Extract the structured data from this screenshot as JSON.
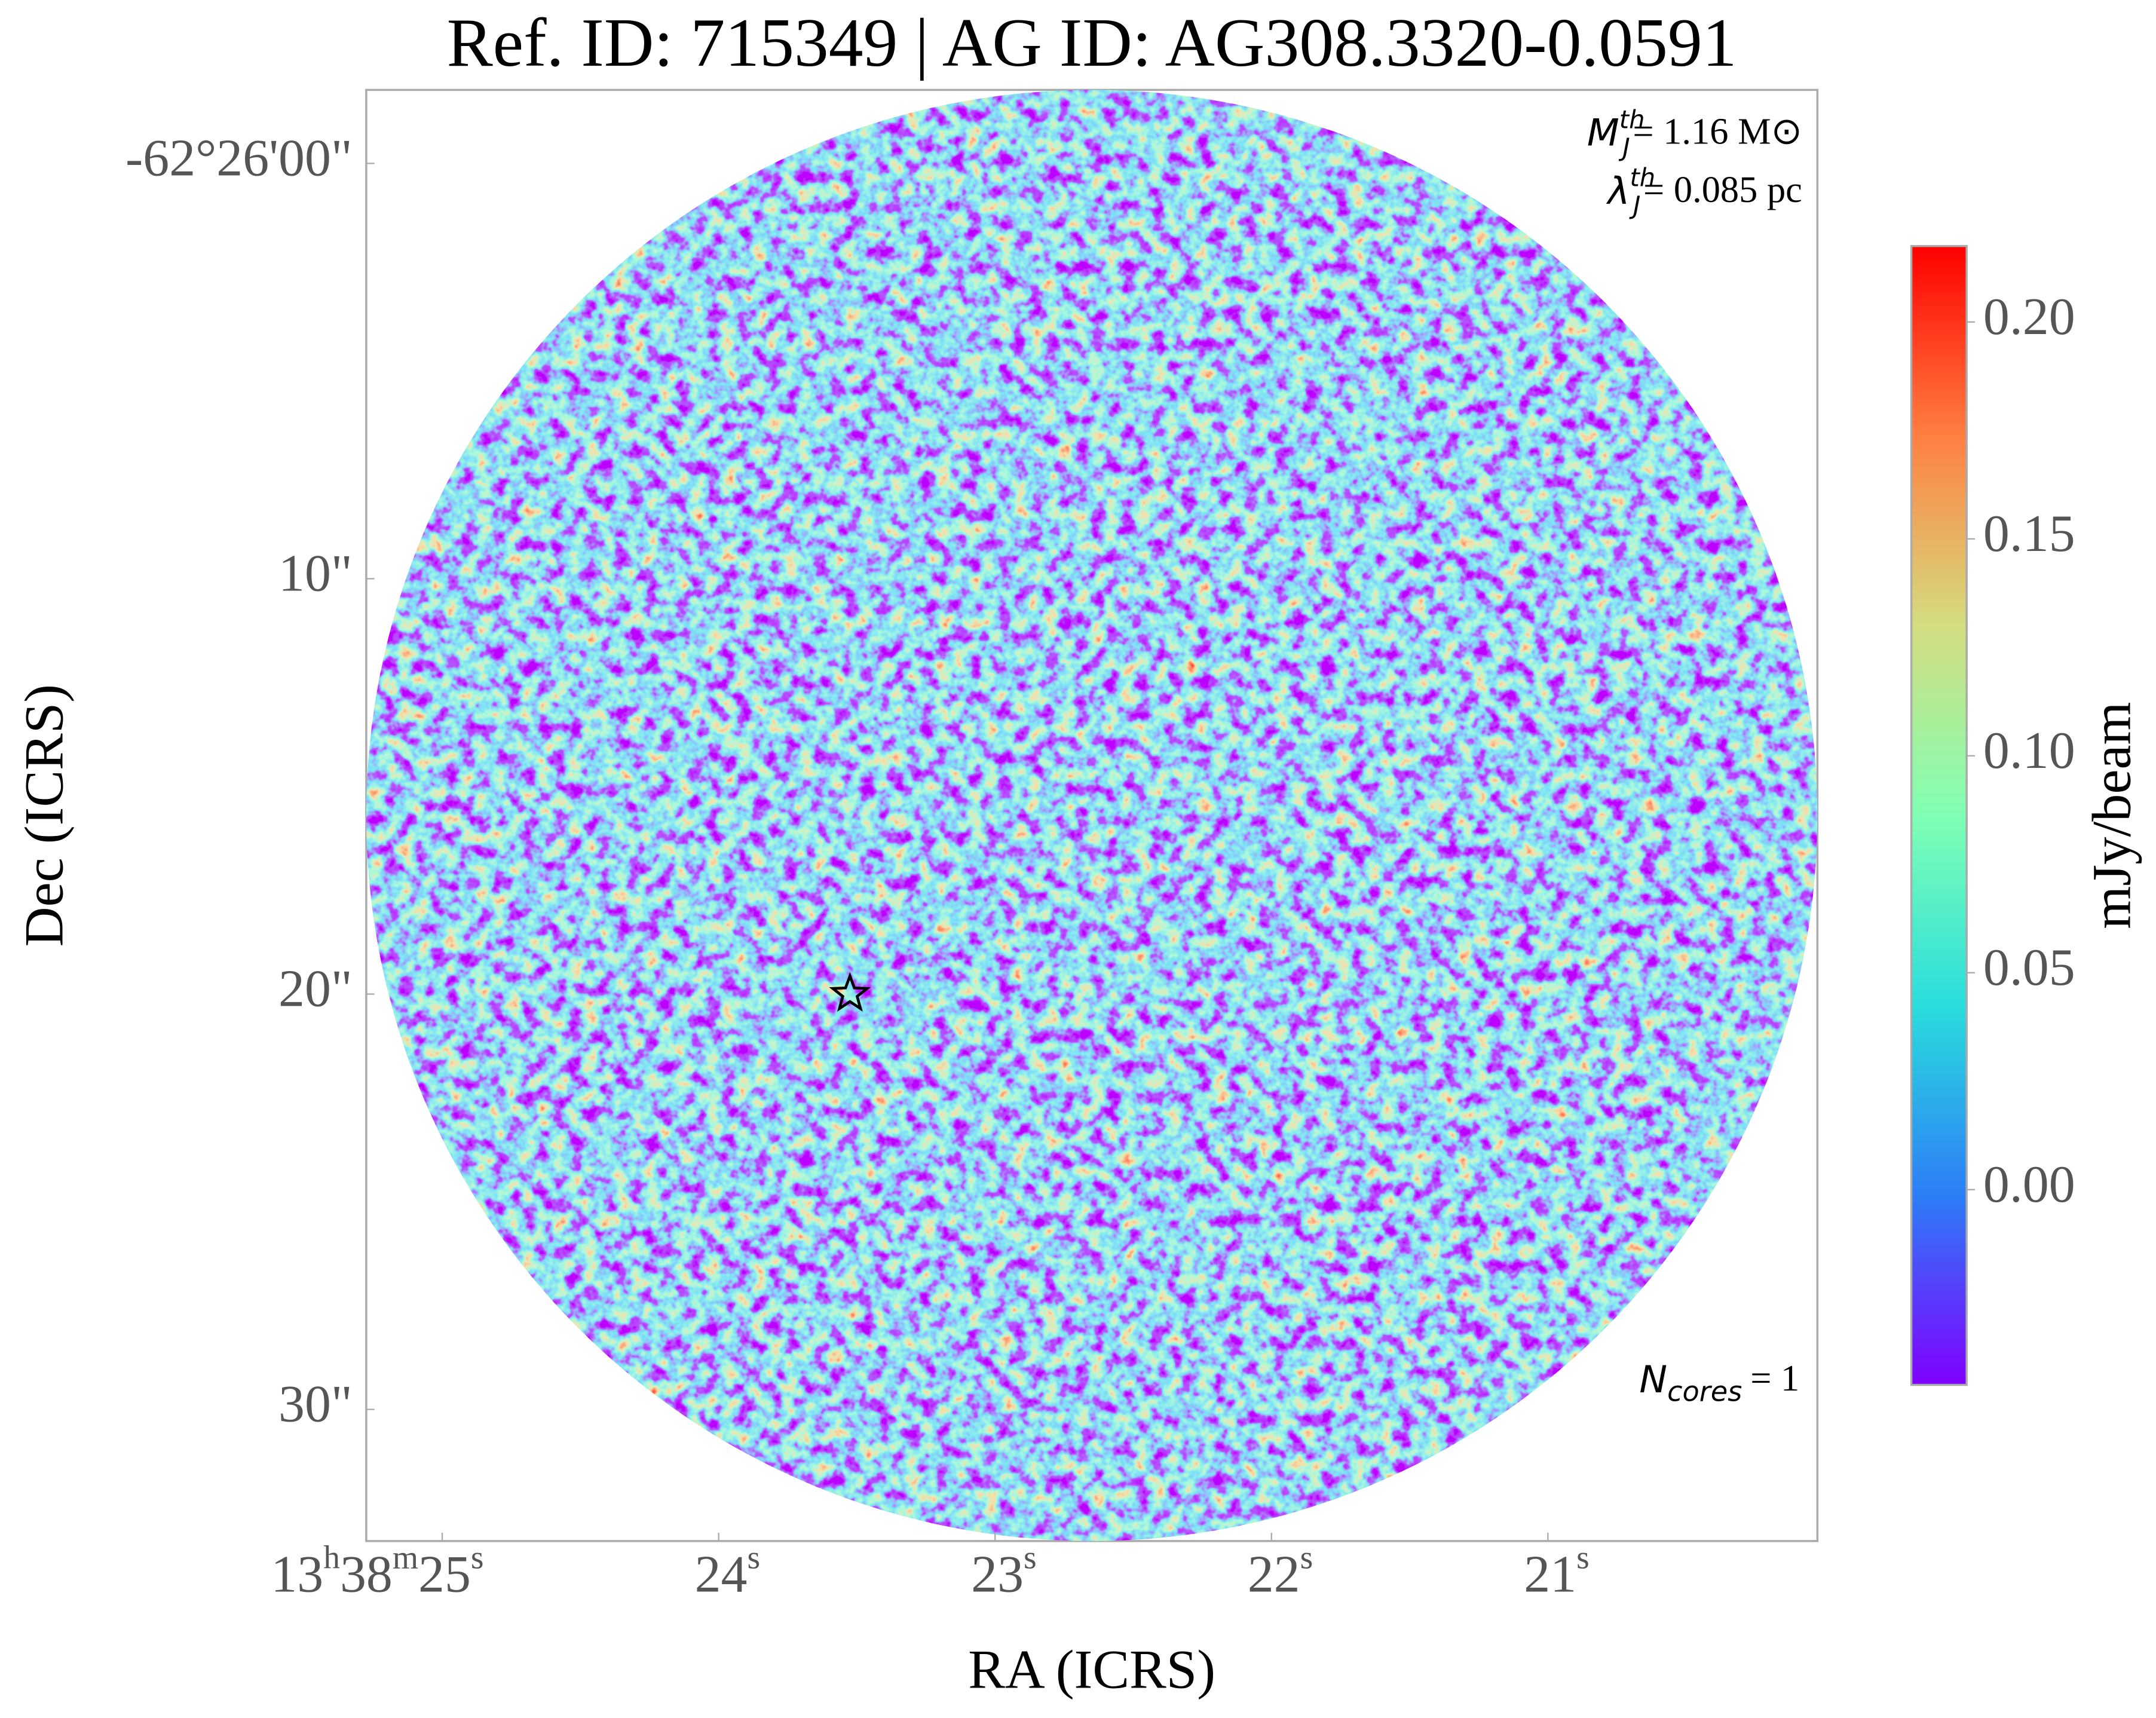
{
  "chart_data": {
    "type": "image",
    "title": "Ref. ID: 715349 | AG ID: AG308.3320-0.0591",
    "x_label": "RA (ICRS)",
    "y_label": "Dec (ICRS)",
    "xlim": [
      25.275,
      20.025
    ],
    "xticks": [
      {
        "value": 25,
        "label": "13h38m25s"
      },
      {
        "value": 24,
        "label": "24s"
      },
      {
        "value": 23,
        "label": "23s"
      },
      {
        "value": 22,
        "label": "22s"
      },
      {
        "value": 21,
        "label": "21s"
      }
    ],
    "ylim": [
      33.17,
      -1.77
    ],
    "yticks": [
      {
        "value": 0,
        "label": "-62°26'00\""
      },
      {
        "value": 10,
        "label": "10\""
      },
      {
        "value": 20,
        "label": "20\""
      },
      {
        "value": 30,
        "label": "30\""
      }
    ],
    "colorbar": {
      "label": "mJy/beam",
      "colormap": "rainbow",
      "clim": [
        -0.045,
        0.2175
      ],
      "ticks": [
        {
          "value": 0,
          "label": "0.00"
        },
        {
          "value": 0.05,
          "label": "0.05"
        },
        {
          "value": 0.1,
          "label": "0.10"
        },
        {
          "value": 0.15,
          "label": "0.15"
        },
        {
          "value": 0.2,
          "label": "0.20"
        }
      ]
    },
    "annotations": {
      "jeans_mass": {
        "symbol": "M",
        "sub": "J",
        "sup": "th",
        "text": "= 1.16 M⊙"
      },
      "jeans_length": {
        "symbol": "λ",
        "sub": "J",
        "sup": "th",
        "text": "= 0.085 pc"
      },
      "cores": {
        "symbol": "N",
        "sub": "cores",
        "text": "= 1"
      }
    },
    "markers": {
      "ra": [
        23.525
      ],
      "dec": [
        20.0
      ]
    }
  }
}
